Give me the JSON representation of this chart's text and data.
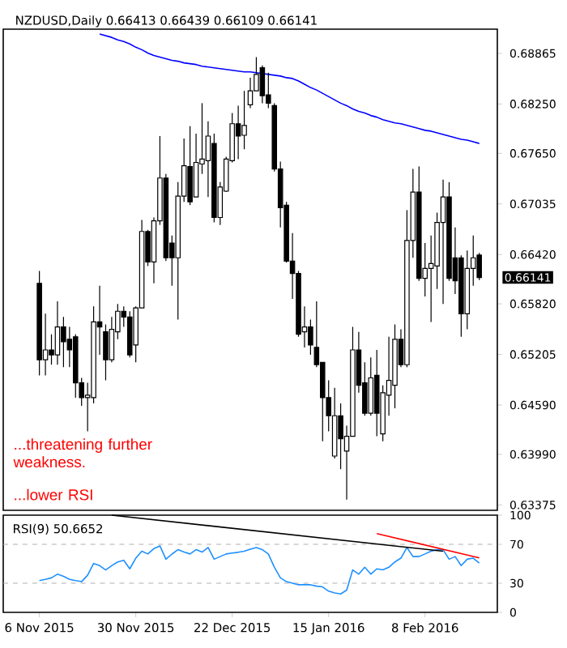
{
  "chart_data": [
    {
      "type": "candlestick",
      "title": "NZDUSD,Daily  0.66413 0.66439 0.66109 0.66141",
      "categories": [
        null,
        null,
        null,
        null,
        null,
        null,
        null,
        null,
        null,
        null,
        null,
        null,
        null,
        null,
        null,
        null,
        null,
        null,
        null,
        null,
        null,
        null,
        null,
        null,
        null,
        null,
        null,
        null,
        null,
        null,
        null,
        null,
        null,
        null,
        null,
        null,
        null,
        null,
        null,
        null,
        null,
        null,
        null,
        null,
        null,
        null,
        null,
        null,
        null,
        null,
        null,
        null,
        null,
        null,
        null,
        null,
        null,
        null,
        null,
        null,
        null,
        null,
        null,
        null,
        null,
        null,
        null,
        null,
        null,
        null,
        null,
        null,
        null,
        null
      ],
      "ohlc": [
        [
          0.6607,
          0.6622,
          0.6495,
          0.6514
        ],
        [
          0.6514,
          0.657,
          0.6495,
          0.6526
        ],
        [
          0.6526,
          0.6545,
          0.6508,
          0.652
        ],
        [
          0.652,
          0.6585,
          0.6508,
          0.6554
        ],
        [
          0.6554,
          0.6566,
          0.6505,
          0.6536
        ],
        [
          0.6539,
          0.6554,
          0.6505,
          0.6526
        ],
        [
          0.6542,
          0.6545,
          0.6468,
          0.6486
        ],
        [
          0.6486,
          0.6492,
          0.6458,
          0.6468
        ],
        [
          0.6468,
          0.6486,
          0.6427,
          0.6471
        ],
        [
          0.6468,
          0.6579,
          0.6461,
          0.656
        ],
        [
          0.656,
          0.6604,
          0.652,
          0.6554
        ],
        [
          0.6548,
          0.6557,
          0.6489,
          0.6514
        ],
        [
          0.6514,
          0.6566,
          0.6511,
          0.6551
        ],
        [
          0.6548,
          0.6582,
          0.6539,
          0.6573
        ],
        [
          0.6573,
          0.6579,
          0.6554,
          0.6566
        ],
        [
          0.6566,
          0.6573,
          0.6517,
          0.652
        ],
        [
          0.6532,
          0.6579,
          0.6511,
          0.6577
        ],
        [
          0.6577,
          0.6684,
          0.6577,
          0.667
        ],
        [
          0.667,
          0.6672,
          0.6628,
          0.6633
        ],
        [
          0.6633,
          0.6687,
          0.6607,
          0.6683
        ],
        [
          0.6683,
          0.6786,
          0.6678,
          0.6735
        ],
        [
          0.6735,
          0.674,
          0.6634,
          0.6638
        ],
        [
          0.6656,
          0.6665,
          0.6604,
          0.6638
        ],
        [
          0.6638,
          0.673,
          0.6563,
          0.6713
        ],
        [
          0.6713,
          0.6783,
          0.6706,
          0.675
        ],
        [
          0.6749,
          0.6798,
          0.6702,
          0.6706
        ],
        [
          0.6712,
          0.6789,
          0.6712,
          0.6754
        ],
        [
          0.6752,
          0.6826,
          0.674,
          0.6758
        ],
        [
          0.6756,
          0.6804,
          0.6712,
          0.6786
        ],
        [
          0.6777,
          0.6789,
          0.6681,
          0.6687
        ],
        [
          0.6687,
          0.673,
          0.6678,
          0.6724
        ],
        [
          0.6719,
          0.6761,
          0.6718,
          0.6758
        ],
        [
          0.6756,
          0.6814,
          0.6754,
          0.6801
        ],
        [
          0.6801,
          0.6823,
          0.6758,
          0.6786
        ],
        [
          0.6787,
          0.6841,
          0.677,
          0.6799
        ],
        [
          0.6824,
          0.6857,
          0.682,
          0.6841
        ],
        [
          0.6841,
          0.6882,
          0.6841,
          0.6861
        ],
        [
          0.6869,
          0.6872,
          0.6826,
          0.6835
        ],
        [
          0.6836,
          0.6863,
          0.682,
          0.6826
        ],
        [
          0.6823,
          0.6826,
          0.6743,
          0.6746
        ],
        [
          0.6746,
          0.6755,
          0.6675,
          0.6699
        ],
        [
          0.6702,
          0.6706,
          0.6632,
          0.6634
        ],
        [
          0.6634,
          0.6668,
          0.6588,
          0.6619
        ],
        [
          0.6619,
          0.6622,
          0.6542,
          0.6545
        ],
        [
          0.6548,
          0.6579,
          0.6529,
          0.6554
        ],
        [
          0.6554,
          0.6563,
          0.652,
          0.6532
        ],
        [
          0.6529,
          0.6585,
          0.6505,
          0.6508
        ],
        [
          0.6511,
          0.6511,
          0.6415,
          0.6468
        ],
        [
          0.6468,
          0.6489,
          0.6427,
          0.6446
        ],
        [
          0.6397,
          0.648,
          0.6394,
          0.6446
        ],
        [
          0.6446,
          0.6461,
          0.6381,
          0.6418
        ],
        [
          0.6403,
          0.6434,
          0.6344,
          0.6421
        ],
        [
          0.6421,
          0.6554,
          0.6421,
          0.6526
        ],
        [
          0.6526,
          0.6548,
          0.6474,
          0.6483
        ],
        [
          0.6486,
          0.6511,
          0.6446,
          0.6449
        ],
        [
          0.6449,
          0.6517,
          0.6446,
          0.6492
        ],
        [
          0.6495,
          0.6526,
          0.6421,
          0.6449
        ],
        [
          0.6424,
          0.6483,
          0.6415,
          0.6474
        ],
        [
          0.6471,
          0.6542,
          0.6446,
          0.6489
        ],
        [
          0.6483,
          0.6557,
          0.6455,
          0.6539
        ],
        [
          0.6539,
          0.6551,
          0.6505,
          0.6508
        ],
        [
          0.6508,
          0.6696,
          0.6505,
          0.6659
        ],
        [
          0.6659,
          0.6746,
          0.6638,
          0.6718
        ],
        [
          0.6718,
          0.6749,
          0.661,
          0.6613
        ],
        [
          0.6613,
          0.6656,
          0.6591,
          0.6625
        ],
        [
          0.6625,
          0.6665,
          0.656,
          0.6631
        ],
        [
          0.6628,
          0.6693,
          0.66,
          0.6681
        ],
        [
          0.6681,
          0.6733,
          0.6582,
          0.6712
        ],
        [
          0.6712,
          0.673,
          0.661,
          0.6613
        ],
        [
          0.6638,
          0.6675,
          0.6594,
          0.661
        ],
        [
          0.6638,
          0.6641,
          0.6542,
          0.657
        ],
        [
          0.657,
          0.6647,
          0.6551,
          0.6625
        ],
        [
          0.6625,
          0.6665,
          0.6604,
          0.6638
        ],
        [
          0.66413,
          0.66439,
          0.66109,
          0.66141
        ]
      ],
      "series": [
        {
          "type": "line",
          "color": "#0000ff",
          "values": [
            null,
            null,
            null,
            null,
            null,
            null,
            null,
            null,
            null,
            null,
            0.691,
            0.6908,
            0.6906,
            0.6903,
            0.6901,
            0.6898,
            0.6894,
            0.6891,
            0.6887,
            0.6884,
            0.6882,
            0.688,
            0.6878,
            0.6877,
            0.6875,
            0.6874,
            0.6873,
            0.6871,
            0.687,
            0.6869,
            0.6868,
            0.6867,
            0.6866,
            0.6865,
            0.6864,
            0.6864,
            0.6863,
            0.6862,
            0.6861,
            0.686,
            0.6859,
            0.6857,
            0.6856,
            0.6853,
            0.6849,
            0.6845,
            0.6842,
            0.6838,
            0.6834,
            0.683,
            0.6826,
            0.6823,
            0.6819,
            0.6816,
            0.6814,
            0.6811,
            0.6809,
            0.6806,
            0.6804,
            0.6802,
            0.6801,
            0.6799,
            0.6797,
            0.6795,
            0.6793,
            0.6792,
            0.679,
            0.6788,
            0.6786,
            0.6784,
            0.6782,
            0.6781,
            0.6779,
            0.6777
          ]
        }
      ],
      "ylim": [
        0.6331,
        0.6916
      ],
      "yticks": [
        0.68865,
        {
          "value": 0.6825,
          "label": "0.68250"
        },
        {
          "value": 0.6765,
          "label": "0.67650"
        },
        0.67035,
        {
          "value": 0.6642,
          "label": "0.66420"
        },
        {
          "value": 0.6582,
          "label": "0.65820"
        },
        0.65205,
        {
          "value": 0.6459,
          "label": "0.64590"
        },
        {
          "value": 0.6399,
          "label": "0.63990"
        },
        0.63375
      ],
      "tick_labels": "y",
      "annotations": [
        "...threatening further weakness.",
        "...lower RSI",
        "0.66141"
      ]
    },
    {
      "type": "line",
      "title": "RSI(9) 50.6652",
      "categories": [
        "6 Nov 2015",
        null,
        null,
        null,
        null,
        null,
        null,
        null,
        null,
        null,
        null,
        null,
        null,
        null,
        null,
        null,
        "30 Nov 2015",
        null,
        null,
        null,
        null,
        null,
        null,
        null,
        null,
        null,
        null,
        null,
        null,
        null,
        null,
        null,
        "22 Dec 2015",
        null,
        null,
        null,
        null,
        null,
        null,
        null,
        null,
        null,
        null,
        null,
        null,
        null,
        null,
        null,
        "15 Jan 2016",
        null,
        null,
        null,
        null,
        null,
        null,
        null,
        null,
        null,
        null,
        null,
        null,
        null,
        null,
        null,
        "8 Feb 2016",
        null,
        null,
        null,
        null,
        null,
        null,
        null,
        null,
        null
      ],
      "series": [
        {
          "color": "#1e90ff",
          "values": [
            32.7,
            34,
            35.5,
            39.3,
            37.1,
            34,
            32.7,
            31.6,
            38.2,
            50.3,
            48.1,
            43.7,
            48,
            51.9,
            53.6,
            44.8,
            55.8,
            62.9,
            60.1,
            65.6,
            68.4,
            54.7,
            60,
            64.5,
            62,
            60.1,
            64.5,
            62,
            66.7,
            54.7,
            57.4,
            60.1,
            61,
            61.8,
            62.9,
            65,
            66.7,
            64.5,
            60.1,
            46.4,
            35.5,
            31.6,
            30,
            28.4,
            28.4,
            28.4,
            27,
            26.2,
            21.8,
            20,
            19,
            22.9,
            43.7,
            39.3,
            46.4,
            39.3,
            44.8,
            43.7,
            46.4,
            51.9,
            55.8,
            66.7,
            57.4,
            57.4,
            60.1,
            62.9,
            64.5,
            64.5,
            54.7,
            57.4,
            48.1,
            54.7,
            55.8,
            50.7
          ]
        },
        {
          "color": "#000000",
          "values": [
            null,
            null,
            null,
            null,
            null,
            null,
            null,
            null,
            null,
            null,
            null,
            null,
            100,
            null,
            null,
            null,
            null,
            null,
            null,
            null,
            null,
            null,
            null,
            null,
            null,
            null,
            null,
            null,
            null,
            null,
            null,
            null,
            null,
            null,
            null,
            null,
            null,
            null,
            null,
            null,
            null,
            null,
            null,
            null,
            null,
            null,
            null,
            null,
            null,
            null,
            null,
            null,
            null,
            null,
            null,
            null,
            null,
            null,
            null,
            null,
            null,
            null,
            null,
            null,
            null,
            null,
            null,
            62.9,
            null,
            null,
            null,
            null,
            null,
            null
          ]
        },
        {
          "color": "#ff0000",
          "values": [
            null,
            null,
            null,
            null,
            null,
            null,
            null,
            null,
            null,
            null,
            null,
            null,
            null,
            null,
            null,
            null,
            null,
            null,
            null,
            null,
            null,
            null,
            null,
            null,
            null,
            null,
            null,
            null,
            null,
            null,
            null,
            null,
            null,
            null,
            null,
            null,
            null,
            null,
            null,
            null,
            null,
            null,
            null,
            null,
            null,
            null,
            null,
            null,
            null,
            null,
            null,
            null,
            null,
            null,
            null,
            null,
            81,
            null,
            null,
            null,
            null,
            null,
            null,
            null,
            null,
            null,
            null,
            null,
            null,
            null,
            null,
            null,
            null,
            56
          ]
        }
      ],
      "ylim": [
        0,
        100
      ],
      "yticks": [
        0,
        30,
        70,
        100
      ],
      "ref_lines": [
        {
          "axis": "y",
          "value": 70,
          "color": "#b0b0b0",
          "line_style": "dashed"
        },
        {
          "axis": "y",
          "value": 30,
          "color": "#b0b0b0",
          "line_style": "dashed"
        }
      ]
    }
  ]
}
